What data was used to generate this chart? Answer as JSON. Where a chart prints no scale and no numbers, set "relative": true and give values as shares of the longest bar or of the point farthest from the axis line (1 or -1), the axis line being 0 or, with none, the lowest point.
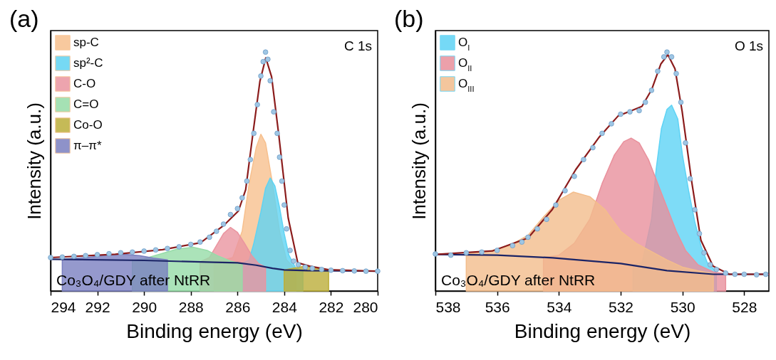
{
  "chart_data": [
    {
      "type": "area",
      "title": "(a)",
      "xlabel": "Binding energy (eV)",
      "ylabel": "Intensity (a.u.)",
      "relative": true,
      "tick_labels": "x",
      "legend": "top left",
      "xlim": [
        294,
        280
      ],
      "xticks": [
        294,
        292,
        290,
        288,
        286,
        284,
        282,
        280
      ],
      "annotations": [
        "C 1s",
        "Co₃O₄/GDY after NtRR"
      ],
      "series": [
        {
          "name": "sp-C",
          "color": "#f7c08e",
          "x": [
            287.0,
            286.2,
            285.8,
            285.5,
            285.2,
            285.0,
            284.8,
            284.5,
            284.2,
            283.9,
            283.5
          ],
          "values": [
            0.12,
            0.14,
            0.25,
            0.45,
            0.6,
            0.656,
            0.62,
            0.45,
            0.25,
            0.13,
            0.09
          ]
        },
        {
          "name": "sp²-C",
          "color": "#5fd3f3",
          "x": [
            285.8,
            285.5,
            285.3,
            285.0,
            284.8,
            284.6,
            284.4,
            284.2,
            284.0,
            283.8,
            283.5,
            283.2
          ],
          "values": [
            0.115,
            0.13,
            0.2,
            0.33,
            0.43,
            0.473,
            0.44,
            0.35,
            0.24,
            0.15,
            0.095,
            0.088
          ]
        },
        {
          "name": "C-O",
          "color": "#ea95a0",
          "x": [
            287.6,
            287.2,
            286.9,
            286.6,
            286.3,
            286.0,
            285.7,
            285.4,
            285.1,
            284.8
          ],
          "values": [
            0.122,
            0.14,
            0.19,
            0.24,
            0.266,
            0.245,
            0.2,
            0.15,
            0.115,
            0.1
          ]
        },
        {
          "name": "C=O",
          "color": "#96dca8",
          "x": [
            290.5,
            290.0,
            289.3,
            288.6,
            287.9,
            287.3,
            286.8,
            286.3,
            285.8
          ],
          "values": [
            0.128,
            0.135,
            0.155,
            0.175,
            0.183,
            0.17,
            0.145,
            0.125,
            0.114
          ]
        },
        {
          "name": "Co-O",
          "color": "#bcae3a",
          "x": [
            284.0,
            283.6,
            283.1,
            282.6,
            282.1
          ],
          "values": [
            0.088,
            0.095,
            0.104,
            0.095,
            0.085
          ]
        },
        {
          "name": "π–π*",
          "color": "#7b80c0",
          "x": [
            293.5,
            292.5,
            291.6,
            290.9,
            290.2,
            289.6,
            289.0
          ],
          "values": [
            0.133,
            0.14,
            0.15,
            0.154,
            0.148,
            0.138,
            0.13
          ]
        },
        {
          "type": "scatter",
          "marker": "circle",
          "color": "#9fc6e4",
          "x": [
            294,
            293.5,
            293,
            292.5,
            292,
            291.5,
            291,
            290.5,
            290,
            289.5,
            289,
            288.5,
            288,
            287.6,
            287.2,
            286.9,
            286.6,
            286.3,
            286.0,
            285.8,
            285.6,
            285.45,
            285.3,
            285.15,
            285.0,
            284.9,
            284.8,
            284.7,
            284.6,
            284.45,
            284.3,
            284.2,
            284.1,
            284.0,
            283.9,
            283.75,
            283.6,
            283.4,
            283.1,
            282.8,
            282.4,
            282,
            281.5,
            281,
            280.5,
            280
          ],
          "values": [
            0.14,
            0.142,
            0.145,
            0.148,
            0.152,
            0.156,
            0.16,
            0.163,
            0.167,
            0.172,
            0.178,
            0.185,
            0.195,
            0.205,
            0.225,
            0.25,
            0.28,
            0.32,
            0.345,
            0.39,
            0.46,
            0.55,
            0.66,
            0.78,
            0.9,
            0.96,
            1.0,
            0.97,
            0.88,
            0.75,
            0.66,
            0.56,
            0.46,
            0.36,
            0.26,
            0.17,
            0.125,
            0.11,
            0.1,
            0.095,
            0.09,
            0.087,
            0.085,
            0.084,
            0.083,
            0.083
          ]
        },
        {
          "type": "line",
          "color": "#1b2466",
          "x": [
            294,
            290,
            287,
            286,
            285.2,
            284.5,
            284,
            283,
            280
          ],
          "values": [
            0.133,
            0.128,
            0.12,
            0.118,
            0.108,
            0.095,
            0.088,
            0.085,
            0.083
          ]
        },
        {
          "type": "line",
          "color": "#8b1c1c",
          "x": [
            294,
            291.23,
            289.2,
            287.58,
            286.57,
            285.96,
            285.65,
            285.35,
            285.04,
            284.79,
            284.54,
            284.23,
            283.83,
            283.42,
            282.91,
            282.1,
            280
          ],
          "values": [
            0.14,
            0.154,
            0.173,
            0.202,
            0.276,
            0.335,
            0.424,
            0.651,
            0.878,
            0.976,
            0.897,
            0.651,
            0.306,
            0.118,
            0.104,
            0.089,
            0.083
          ]
        }
      ]
    },
    {
      "type": "area",
      "title": "(b)",
      "xlabel": "Binding energy (eV)",
      "ylabel": "Intensity (a.u.)",
      "relative": true,
      "tick_labels": "x",
      "legend": "top left",
      "xlim": [
        538,
        527.2
      ],
      "xticks": [
        538,
        536,
        534,
        532,
        530,
        528
      ],
      "annotations": [
        "O 1s",
        "Co₃O₄/GDY after NtRR"
      ],
      "series": [
        {
          "name": "O$_{I}$",
          "color": "#5ed3f5",
          "x": [
            531.6,
            531.3,
            531.0,
            530.85,
            530.68,
            530.5,
            530.35,
            530.15,
            530.0,
            529.8,
            529.6,
            529.4,
            529.2,
            528.9
          ],
          "values": [
            0.11,
            0.12,
            0.3,
            0.51,
            0.68,
            0.76,
            0.778,
            0.72,
            0.57,
            0.42,
            0.29,
            0.19,
            0.12,
            0.08
          ]
        },
        {
          "name": "O$_{II}$",
          "color": "#e9909c",
          "x": [
            534.5,
            534.0,
            533.5,
            533.0,
            532.6,
            532.2,
            531.9,
            531.66,
            531.4,
            531.1,
            530.8,
            530.5,
            530.2,
            529.9,
            529.5,
            529.0,
            528.6
          ],
          "values": [
            0.14,
            0.15,
            0.2,
            0.3,
            0.45,
            0.57,
            0.625,
            0.64,
            0.62,
            0.55,
            0.45,
            0.35,
            0.25,
            0.17,
            0.11,
            0.08,
            0.072
          ]
        },
        {
          "name": "O$_{III}$",
          "color": "#f3bd8c",
          "x": [
            537.0,
            536.2,
            535.6,
            535.0,
            534.5,
            534.0,
            533.53,
            533.0,
            532.5,
            532.0,
            531.5,
            531.0,
            530.5,
            530.0,
            529.5,
            529.0
          ],
          "values": [
            0.155,
            0.168,
            0.19,
            0.233,
            0.31,
            0.38,
            0.414,
            0.395,
            0.34,
            0.25,
            0.2,
            0.165,
            0.13,
            0.1,
            0.085,
            0.072
          ]
        },
        {
          "type": "scatter",
          "marker": "circle",
          "color": "#9fc6e4",
          "x": [
            538,
            537.5,
            537,
            536.5,
            536,
            535.5,
            535.2,
            535,
            534.7,
            534.4,
            534.1,
            533.8,
            533.5,
            533.2,
            532.9,
            532.6,
            532.3,
            532.0,
            531.7,
            531.4,
            531.2,
            531.0,
            530.8,
            530.6,
            530.5,
            530.35,
            530.2,
            530.05,
            529.9,
            529.75,
            529.6,
            529.45,
            529.3,
            529.1,
            528.9,
            528.6,
            528.3,
            528,
            527.6,
            527.3
          ],
          "values": [
            0.155,
            0.15,
            0.16,
            0.163,
            0.17,
            0.19,
            0.205,
            0.225,
            0.26,
            0.3,
            0.36,
            0.42,
            0.48,
            0.55,
            0.6,
            0.66,
            0.7,
            0.74,
            0.75,
            0.755,
            0.79,
            0.84,
            0.92,
            0.98,
            1.0,
            0.98,
            0.91,
            0.79,
            0.62,
            0.47,
            0.34,
            0.24,
            0.16,
            0.11,
            0.09,
            0.075,
            0.07,
            0.07,
            0.068,
            0.07
          ]
        },
        {
          "type": "line",
          "color": "#1b2466",
          "x": [
            538,
            536,
            534.2,
            532,
            530.5,
            529,
            527.2
          ],
          "values": [
            0.153,
            0.15,
            0.139,
            0.115,
            0.085,
            0.07,
            0.07
          ]
        },
        {
          "type": "line",
          "color": "#8b1c1c",
          "x": [
            538,
            536.14,
            535,
            534.22,
            533.46,
            532.69,
            532.08,
            531.69,
            531.31,
            531,
            530.7,
            530.47,
            530.24,
            530.01,
            529.7,
            529.4,
            529.01,
            528.48,
            527.2
          ],
          "values": [
            0.153,
            0.168,
            0.222,
            0.34,
            0.507,
            0.645,
            0.733,
            0.753,
            0.773,
            0.842,
            0.95,
            0.989,
            0.93,
            0.753,
            0.458,
            0.212,
            0.104,
            0.07,
            0.07
          ]
        }
      ]
    }
  ]
}
